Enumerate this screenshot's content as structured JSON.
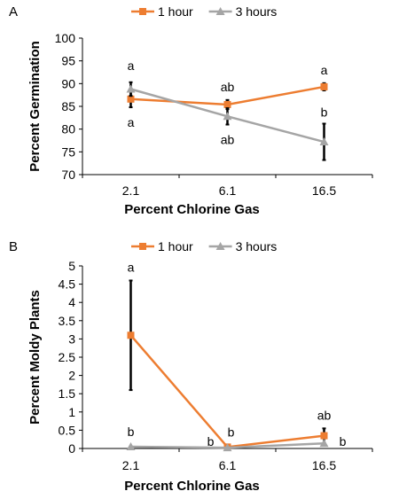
{
  "chart_data": [
    {
      "type": "line",
      "panel_label": "A",
      "x": [
        "2.1",
        "6.1",
        "16.5"
      ],
      "xlabel": "Percent Chlorine Gas",
      "ylabel": "Percent Germination",
      "ylim": [
        70,
        100
      ],
      "yticks": [
        "70",
        "75",
        "80",
        "85",
        "90",
        "95",
        "100"
      ],
      "grid": false,
      "legend_position": "top",
      "series": [
        {
          "name": "1 hour",
          "color": "#ED7D31",
          "marker": "square",
          "values": [
            86.6,
            85.4,
            89.3
          ],
          "error": [
            1.8,
            1.0,
            0.8
          ],
          "letters": [
            "a",
            "ab",
            "a"
          ]
        },
        {
          "name": "3 hours",
          "color": "#A5A5A5",
          "marker": "triangle",
          "values": [
            88.8,
            82.8,
            77.2
          ],
          "error": [
            1.5,
            1.8,
            4.0
          ],
          "letters": [
            "a",
            "ab",
            "b"
          ]
        }
      ]
    },
    {
      "type": "line",
      "panel_label": "B",
      "x": [
        "2.1",
        "6.1",
        "16.5"
      ],
      "xlabel": "Percent Chlorine Gas",
      "ylabel": "Percent Moldy Plants",
      "ylim": [
        0,
        5
      ],
      "yticks": [
        "0",
        "0.5",
        "1",
        "1.5",
        "2",
        "2.5",
        "3",
        "3.5",
        "4",
        "4.5",
        "5"
      ],
      "grid": false,
      "legend_position": "top",
      "series": [
        {
          "name": "1 hour",
          "color": "#ED7D31",
          "marker": "square",
          "values": [
            3.1,
            0.04,
            0.35
          ],
          "error": [
            1.5,
            0.0,
            0.2
          ],
          "letters": [
            "a",
            "b",
            "ab"
          ]
        },
        {
          "name": "3 hours",
          "color": "#A5A5A5",
          "marker": "triangle",
          "values": [
            0.05,
            0.02,
            0.14
          ],
          "error": [
            0.0,
            0.0,
            0.0
          ],
          "letters": [
            "b",
            "b",
            "b"
          ]
        }
      ]
    }
  ]
}
